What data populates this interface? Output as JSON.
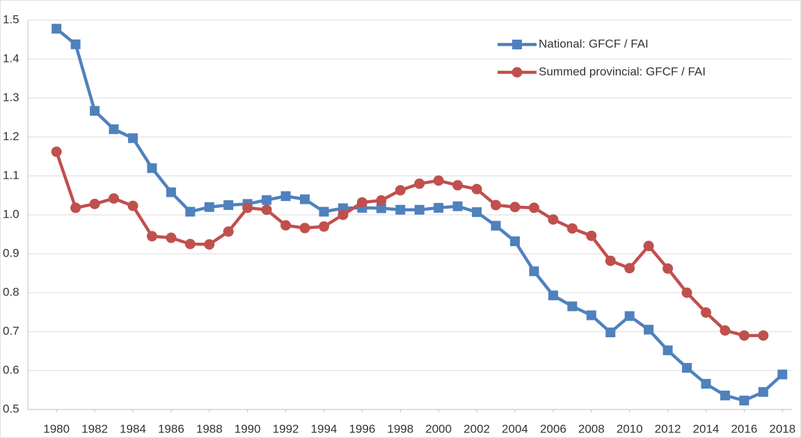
{
  "chart_data": {
    "type": "line",
    "x": [
      1980,
      1981,
      1982,
      1983,
      1984,
      1985,
      1986,
      1987,
      1988,
      1989,
      1990,
      1991,
      1992,
      1993,
      1994,
      1995,
      1996,
      1997,
      1998,
      1999,
      2000,
      2001,
      2002,
      2003,
      2004,
      2005,
      2006,
      2007,
      2008,
      2009,
      2010,
      2011,
      2012,
      2013,
      2014,
      2015,
      2016,
      2017,
      2018
    ],
    "series": [
      {
        "name": "National: GFCF / FAI",
        "color": "#4f81bd",
        "marker": "square",
        "values": [
          1.478,
          1.438,
          1.267,
          1.22,
          1.197,
          1.12,
          1.058,
          1.008,
          1.02,
          1.025,
          1.028,
          1.038,
          1.048,
          1.04,
          1.008,
          1.017,
          1.018,
          1.017,
          1.013,
          1.013,
          1.018,
          1.022,
          1.007,
          0.972,
          0.932,
          0.855,
          0.793,
          0.765,
          0.742,
          0.698,
          0.74,
          0.705,
          0.652,
          0.607,
          0.566,
          0.536,
          0.523,
          0.545,
          0.59
        ]
      },
      {
        "name": "Summed provincial: GFCF / FAI",
        "color": "#c0504d",
        "marker": "circle",
        "values": [
          1.162,
          1.018,
          1.028,
          1.042,
          1.023,
          0.945,
          0.941,
          0.925,
          0.924,
          0.957,
          1.018,
          1.013,
          0.973,
          0.966,
          0.97,
          1.0,
          1.032,
          1.037,
          1.063,
          1.08,
          1.088,
          1.076,
          1.066,
          1.025,
          1.02,
          1.018,
          0.988,
          0.965,
          0.946,
          0.882,
          0.863,
          0.92,
          0.862,
          0.8,
          0.749,
          0.703,
          0.69,
          0.69,
          null
        ]
      }
    ],
    "xlim": [
      1978.5,
      2018.5
    ],
    "xticks": [
      1980,
      1982,
      1984,
      1986,
      1988,
      1990,
      1992,
      1994,
      1996,
      1998,
      2000,
      2002,
      2004,
      2006,
      2008,
      2010,
      2012,
      2014,
      2016,
      2018
    ],
    "ylim": [
      0.5,
      1.5
    ],
    "yticks": [
      0.5,
      0.6,
      0.7,
      0.8,
      0.9,
      {
        "value": 1,
        "label": "1.0"
      },
      1.1,
      1.2,
      1.3,
      1.4,
      1.5
    ],
    "grid": true,
    "legend": "upper right"
  }
}
